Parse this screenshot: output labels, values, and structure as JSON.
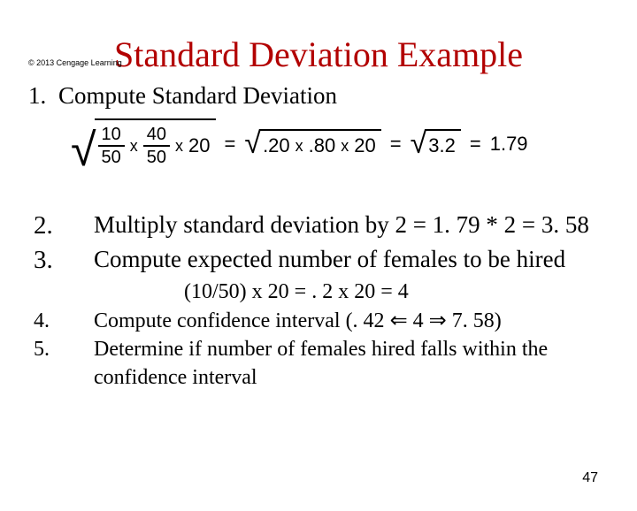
{
  "copyright": "© 2013 Cengage Learning",
  "title": "Standard Deviation Example",
  "title_color": "#b20000",
  "step1": {
    "num": "1.",
    "text": "Compute Standard Deviation"
  },
  "formula": {
    "frac1_num": "10",
    "frac1_den": "50",
    "frac2_num": "40",
    "frac2_den": "50",
    "n": "20",
    "p1": ".20",
    "p2": ".80",
    "n2": "20",
    "var": "3.2",
    "result": "1.79",
    "mult_sym": "x",
    "eq_sym": "="
  },
  "steps": [
    {
      "num": "2.",
      "text": "Multiply standard deviation by 2  = 1. 79 * 2 = 3. 58",
      "size": "big"
    },
    {
      "num": "3.",
      "text": "Compute expected number of females to be hired",
      "size": "big"
    },
    {
      "num": "",
      "text": "(10/50) x 20 = . 2 x 20 = 4",
      "sub": true
    },
    {
      "num": "4.",
      "text": "Compute confidence interval (. 42 ⇐ 4 ⇒ 7. 58)",
      "size": "small",
      "arrows": true
    },
    {
      "num": "5.",
      "text": "Determine if number of females hired falls within the confidence interval",
      "size": "small"
    }
  ],
  "page_num": "47"
}
